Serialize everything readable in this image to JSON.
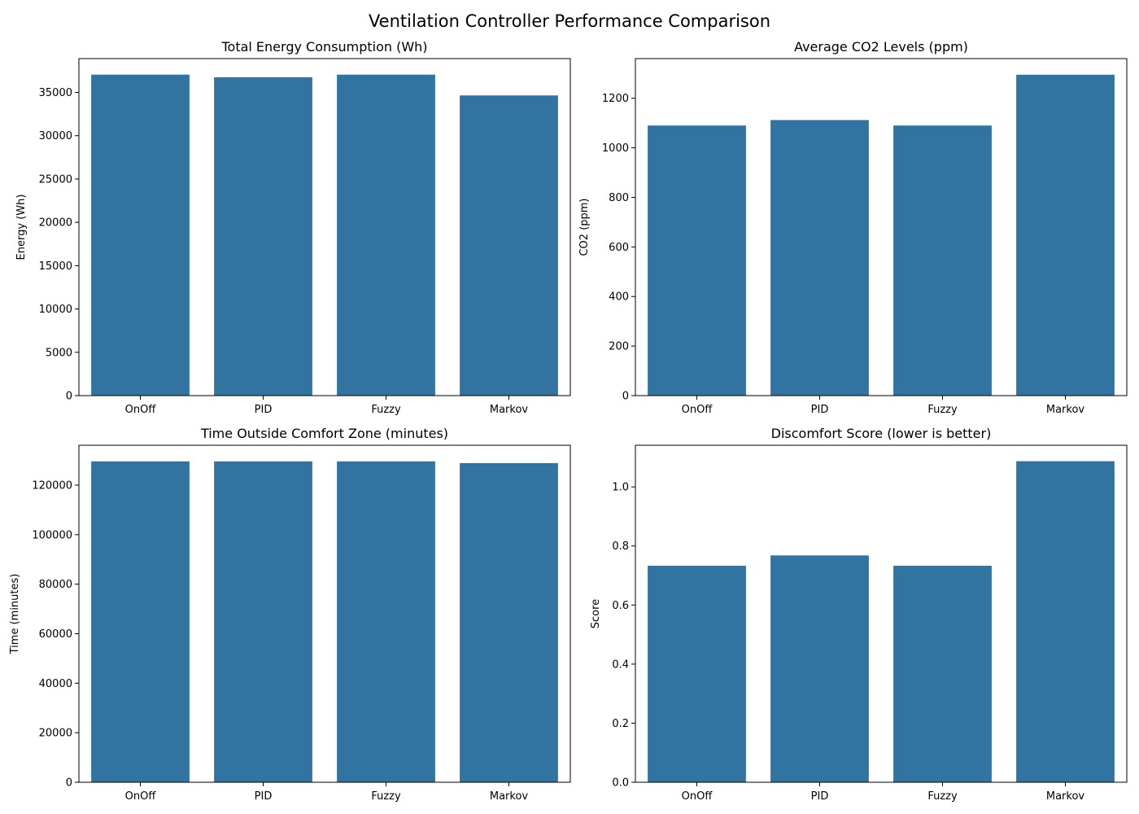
{
  "suptitle": "Ventilation Controller Performance Comparison",
  "bar_color": "#3274a1",
  "chart_data": [
    {
      "type": "bar",
      "title": "Total Energy Consumption (Wh)",
      "xlabel": "",
      "ylabel": "Energy (Wh)",
      "categories": [
        "OnOff",
        "PID",
        "Fuzzy",
        "Markov"
      ],
      "values": [
        37050,
        36750,
        37050,
        34650
      ],
      "ylim": [
        0,
        38900
      ],
      "yticks": [
        0,
        5000,
        10000,
        15000,
        20000,
        25000,
        30000,
        35000
      ],
      "ytick_labels": [
        "0",
        "5000",
        "10000",
        "15000",
        "20000",
        "25000",
        "30000",
        "35000"
      ]
    },
    {
      "type": "bar",
      "title": "Average CO2 Levels (ppm)",
      "xlabel": "",
      "ylabel": "CO2 (ppm)",
      "categories": [
        "OnOff",
        "PID",
        "Fuzzy",
        "Markov"
      ],
      "values": [
        1090,
        1112,
        1090,
        1295
      ],
      "ylim": [
        0,
        1360
      ],
      "yticks": [
        0,
        200,
        400,
        600,
        800,
        1000,
        1200
      ],
      "ytick_labels": [
        "0",
        "200",
        "400",
        "600",
        "800",
        "1000",
        "1200"
      ]
    },
    {
      "type": "bar",
      "title": "Time Outside Comfort Zone (minutes)",
      "xlabel": "",
      "ylabel": "Time (minutes)",
      "categories": [
        "OnOff",
        "PID",
        "Fuzzy",
        "Markov"
      ],
      "values": [
        129600,
        129600,
        129600,
        128900
      ],
      "ylim": [
        0,
        136100
      ],
      "yticks": [
        0,
        20000,
        40000,
        60000,
        80000,
        100000,
        120000
      ],
      "ytick_labels": [
        "0",
        "20000",
        "40000",
        "60000",
        "80000",
        "100000",
        "120000"
      ]
    },
    {
      "type": "bar",
      "title": "Discomfort Score (lower is better)",
      "xlabel": "",
      "ylabel": "Score",
      "categories": [
        "OnOff",
        "PID",
        "Fuzzy",
        "Markov"
      ],
      "values": [
        0.733,
        0.768,
        0.733,
        1.087
      ],
      "ylim": [
        0,
        1.141
      ],
      "yticks": [
        0.0,
        0.2,
        0.4,
        0.6,
        0.8,
        1.0
      ],
      "ytick_labels": [
        "0.0",
        "0.2",
        "0.4",
        "0.6",
        "0.8",
        "1.0"
      ]
    }
  ]
}
